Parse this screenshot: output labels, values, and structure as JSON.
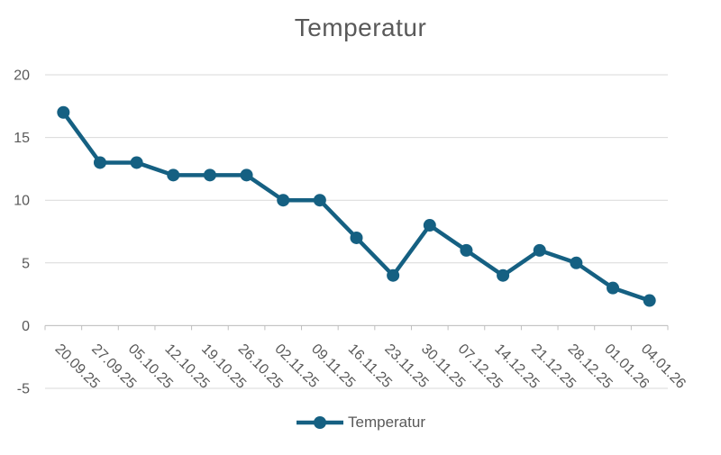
{
  "chart": {
    "title": "Temperatur",
    "legend": {
      "label": "Temperatur",
      "marker": "line-with-circle"
    }
  },
  "chart_data": {
    "type": "line",
    "title": "Temperatur",
    "categories": [
      "20.09.25",
      "27.09.25",
      "05.10.25",
      "12.10.25",
      "19.10.25",
      "26.10.25",
      "02.11.25",
      "09.11.25",
      "16.11.25",
      "23.11.25",
      "30.11.25",
      "07.12.25",
      "14.12.25",
      "21.12.25",
      "28.12.25",
      "01.01.26",
      "04.01.26"
    ],
    "series": [
      {
        "name": "Temperatur",
        "values": [
          17,
          13,
          13,
          12,
          12,
          12,
          10,
          10,
          7,
          4,
          8,
          6,
          4,
          6,
          5,
          3,
          2
        ]
      }
    ],
    "xlabel": "",
    "ylabel": "",
    "ylim": [
      -5,
      20
    ],
    "yticks": [
      20,
      15,
      10,
      5,
      0,
      -5
    ],
    "ytick_interval": 5,
    "grid": true,
    "legend_position": "bottom",
    "x_label_rotation_deg": 45,
    "marker": "circle",
    "colors": {
      "series": "#156082",
      "text": "#595959",
      "gridline": "#D9D9D9",
      "axis": "#BFBFBF"
    }
  }
}
